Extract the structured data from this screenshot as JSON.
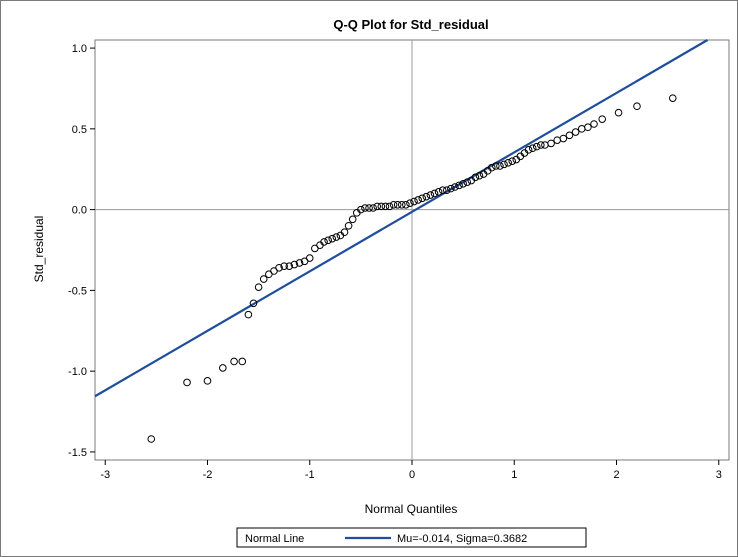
{
  "chart_data": {
    "type": "scatter",
    "title": "Q-Q Plot for Std_residual",
    "xlabel": "Normal Quantiles",
    "ylabel": "Std_residual",
    "xlim": [
      -3.1,
      3.1
    ],
    "ylim": [
      -1.55,
      1.05
    ],
    "xticks": [
      -3,
      -2,
      -1,
      0,
      1,
      2,
      3
    ],
    "xtick_labels": [
      "-3",
      "-2",
      "-1",
      "0",
      "1",
      "2",
      "3"
    ],
    "yticks": [
      -1.5,
      -1.0,
      -0.5,
      0.0,
      0.5,
      1.0
    ],
    "ytick_labels": [
      "-1.5",
      "-1.0",
      "-0.5",
      "0.0",
      "0.5",
      "1.0"
    ],
    "reference_lines": {
      "x": 0,
      "y": 0
    },
    "grid": false,
    "legend_placement": "bottom",
    "normal_line": {
      "mu": -0.014,
      "sigma": 0.3682,
      "color": "#1f4e9c"
    },
    "legend": {
      "label": "Normal Line",
      "entry": "Mu=-0.014, Sigma=0.3682"
    },
    "series": [
      {
        "marker": "open-circle",
        "color": "#000000",
        "x": [
          -2.55,
          -2.2,
          -2.0,
          -1.85,
          -1.74,
          -1.66,
          -1.6,
          -1.55,
          -1.5,
          -1.45,
          -1.4,
          -1.35,
          -1.3,
          -1.25,
          -1.2,
          -1.15,
          -1.1,
          -1.05,
          -1.0,
          -0.95,
          -0.9,
          -0.86,
          -0.82,
          -0.78,
          -0.74,
          -0.7,
          -0.66,
          -0.62,
          -0.58,
          -0.54,
          -0.5,
          -0.46,
          -0.42,
          -0.38,
          -0.34,
          -0.3,
          -0.26,
          -0.22,
          -0.18,
          -0.14,
          -0.1,
          -0.06,
          -0.02,
          0.02,
          0.06,
          0.1,
          0.14,
          0.18,
          0.22,
          0.26,
          0.3,
          0.34,
          0.38,
          0.42,
          0.46,
          0.5,
          0.54,
          0.58,
          0.62,
          0.66,
          0.7,
          0.74,
          0.78,
          0.82,
          0.86,
          0.9,
          0.94,
          0.98,
          1.02,
          1.06,
          1.1,
          1.14,
          1.18,
          1.22,
          1.26,
          1.3,
          1.36,
          1.42,
          1.48,
          1.54,
          1.6,
          1.66,
          1.72,
          1.78,
          1.86,
          2.02,
          2.2,
          2.55
        ],
        "y": [
          -1.42,
          -1.07,
          -1.06,
          -0.98,
          -0.94,
          -0.94,
          -0.65,
          -0.58,
          -0.48,
          -0.43,
          -0.4,
          -0.38,
          -0.36,
          -0.35,
          -0.35,
          -0.34,
          -0.33,
          -0.32,
          -0.3,
          -0.24,
          -0.22,
          -0.2,
          -0.19,
          -0.18,
          -0.17,
          -0.16,
          -0.14,
          -0.1,
          -0.06,
          -0.02,
          0.0,
          0.01,
          0.01,
          0.01,
          0.02,
          0.02,
          0.02,
          0.02,
          0.03,
          0.03,
          0.03,
          0.03,
          0.04,
          0.05,
          0.06,
          0.07,
          0.08,
          0.09,
          0.1,
          0.11,
          0.12,
          0.12,
          0.13,
          0.14,
          0.15,
          0.16,
          0.17,
          0.18,
          0.2,
          0.21,
          0.22,
          0.24,
          0.26,
          0.27,
          0.27,
          0.28,
          0.29,
          0.3,
          0.31,
          0.33,
          0.35,
          0.37,
          0.38,
          0.39,
          0.4,
          0.4,
          0.41,
          0.43,
          0.44,
          0.46,
          0.48,
          0.5,
          0.51,
          0.53,
          0.56,
          0.6,
          0.64,
          0.69
        ]
      }
    ]
  }
}
